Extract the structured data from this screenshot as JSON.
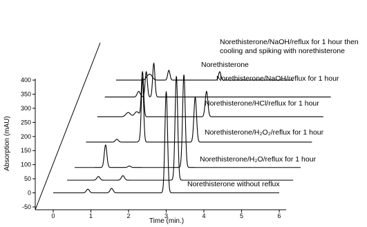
{
  "chart_data": {
    "type": "line",
    "title": "",
    "xlabel": "Time (min.)",
    "ylabel": "Absorption (mAU)",
    "xlim": [
      -0.7,
      6.5
    ],
    "ylim": [
      -50,
      420
    ],
    "x_ticks": [
      0,
      1,
      2,
      3,
      4,
      5,
      6
    ],
    "y_ticks": [
      -50,
      0,
      50,
      100,
      150,
      200,
      250,
      300,
      350,
      400
    ],
    "grid": false,
    "offset_3d": true,
    "series": [
      {
        "label_lines": [
          "Norethisterone without reflux"
        ],
        "offset_x": 0,
        "offset_y": 0,
        "x_start": 0,
        "x_end": 6,
        "peaks": [
          {
            "rt": 0.92,
            "height": 13,
            "width": 0.04
          },
          {
            "rt": 1.55,
            "height": 16,
            "width": 0.04
          },
          {
            "rt": 3.0,
            "height": 360,
            "width": 0.035
          }
        ]
      },
      {
        "label_lines": [
          "Norethisterone/H₂O/reflux for 1 hour"
        ],
        "offset_x": 0.27,
        "offset_y": 45,
        "x_start": 0.1,
        "x_end": 6.1,
        "peaks": [
          {
            "rt": 0.93,
            "height": 13,
            "width": 0.04
          },
          {
            "rt": 1.58,
            "height": 16,
            "width": 0.04
          },
          {
            "rt": 3.0,
            "height": 370,
            "width": 0.035
          }
        ]
      },
      {
        "label_lines": [
          "Norethisterone/H₂O₂/reflux for 1 hour"
        ],
        "offset_x": 0.47,
        "offset_y": 90,
        "x_start": 0.1,
        "x_end": 6.1,
        "peaks": [
          {
            "rt": 0.92,
            "height": 80,
            "width": 0.035
          },
          {
            "rt": 1.55,
            "height": 5,
            "width": 0.04
          },
          {
            "rt": 3.0,
            "height": 330,
            "width": 0.035
          }
        ]
      },
      {
        "label_lines": [
          "Norethisterone/HCl/reflux for 1 hour"
        ],
        "offset_x": 0.77,
        "offset_y": 180,
        "x_start": 0.1,
        "x_end": 6.1,
        "peaks": [
          {
            "rt": 0.92,
            "height": 10,
            "width": 0.04
          },
          {
            "rt": 1.55,
            "height": 7,
            "width": 0.04
          },
          {
            "rt": 1.6,
            "height": 225,
            "width": 0.03
          },
          {
            "rt": 3.0,
            "height": 160,
            "width": 0.035
          }
        ]
      },
      {
        "label_lines": [
          "Norethisterone/NaOH/reflux for 1 hour"
        ],
        "offset_x": 1.07,
        "offset_y": 270,
        "x_start": 0.1,
        "x_end": 6.1,
        "peaks": [
          {
            "rt": 0.92,
            "height": 15,
            "width": 0.06
          },
          {
            "rt": 1.15,
            "height": 18,
            "width": 0.06
          },
          {
            "rt": 1.3,
            "height": 160,
            "width": 0.03
          },
          {
            "rt": 3.0,
            "height": 90,
            "width": 0.035
          }
        ]
      },
      {
        "label_lines": [
          "Norethisterone"
        ],
        "offset_x": 1.27,
        "offset_y": 340,
        "x_start": 0.1,
        "x_end": 6.1,
        "peaks": [
          {
            "rt": 1.0,
            "height": 20,
            "width": 0.04
          },
          {
            "rt": 1.2,
            "height": 90,
            "width": 0.03
          },
          {
            "rt": 1.4,
            "height": 120,
            "width": 0.03
          }
        ]
      },
      {
        "label_lines": [
          "Norethisterone/NaOH/reflux for 1 hour then",
          "cooling and spiking with norethisterone"
        ],
        "offset_x": 1.57,
        "offset_y": 400,
        "x_start": 0.1,
        "x_end": 4.8,
        "peaks": [
          {
            "rt": 0.92,
            "height": 6,
            "width": 0.04
          },
          {
            "rt": 1.0,
            "height": 20,
            "width": 0.06
          },
          {
            "rt": 1.5,
            "height": 35,
            "width": 0.03
          },
          {
            "rt": 2.85,
            "height": 30,
            "width": 0.03
          }
        ]
      }
    ]
  }
}
